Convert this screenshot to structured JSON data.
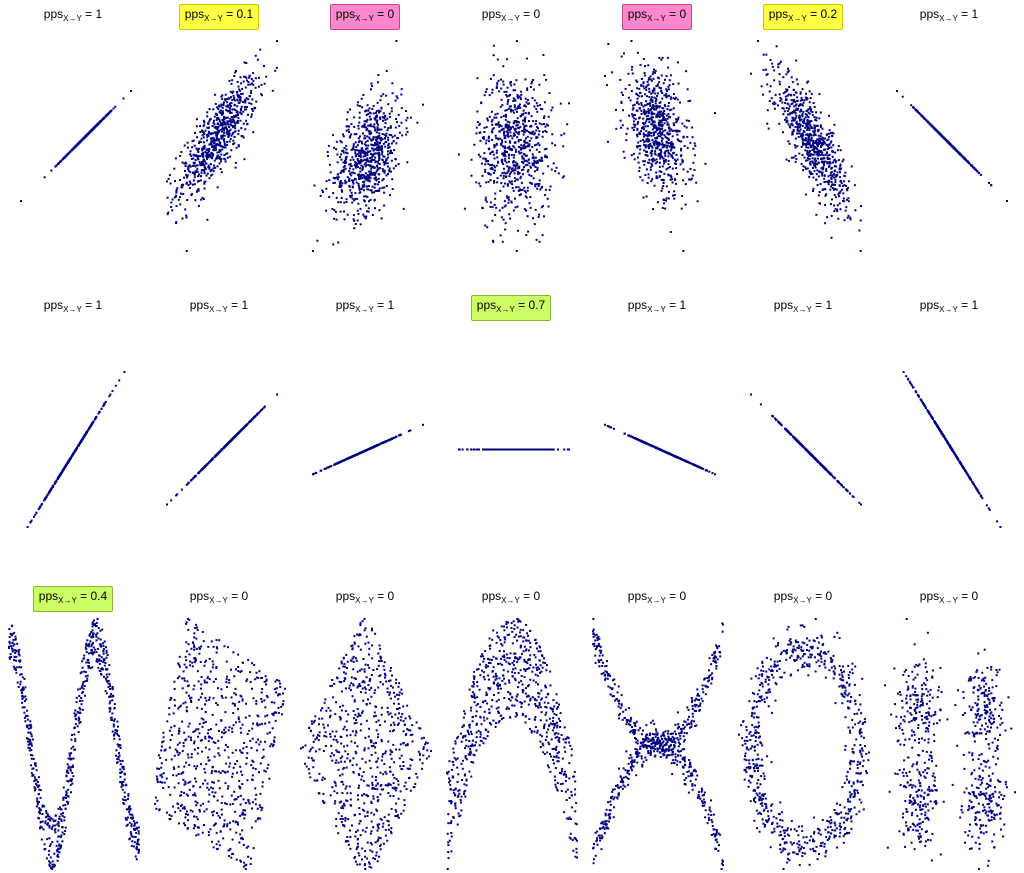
{
  "chart_data": [
    {
      "type": "scatter",
      "row": 0,
      "label": {
        "prefix": "pps",
        "sub": "X→Y",
        "value": "= 1"
      },
      "highlight": null,
      "pattern": "line",
      "slope": 1.0
    },
    {
      "type": "scatter",
      "row": 0,
      "label": {
        "prefix": "pps",
        "sub": "X→Y",
        "value": "= 0.1"
      },
      "highlight": "#ffff44",
      "pattern": "corr",
      "rho": 0.8
    },
    {
      "type": "scatter",
      "row": 0,
      "label": {
        "prefix": "pps",
        "sub": "X→Y",
        "value": "= 0"
      },
      "highlight": "#ff88cc",
      "pattern": "corr",
      "rho": 0.4
    },
    {
      "type": "scatter",
      "row": 0,
      "label": {
        "prefix": "pps",
        "sub": "X→Y",
        "value": "= 0"
      },
      "highlight": null,
      "pattern": "corr",
      "rho": 0.0
    },
    {
      "type": "scatter",
      "row": 0,
      "label": {
        "prefix": "pps",
        "sub": "X→Y",
        "value": "= 0"
      },
      "highlight": "#ff88cc",
      "pattern": "corr",
      "rho": -0.4
    },
    {
      "type": "scatter",
      "row": 0,
      "label": {
        "prefix": "pps",
        "sub": "X→Y",
        "value": "= 0.2"
      },
      "highlight": "#ffff44",
      "pattern": "corr",
      "rho": -0.8
    },
    {
      "type": "scatter",
      "row": 0,
      "label": {
        "prefix": "pps",
        "sub": "X→Y",
        "value": "= 1"
      },
      "highlight": null,
      "pattern": "line",
      "slope": -1.0
    },
    {
      "type": "scatter",
      "row": 1,
      "label": {
        "prefix": "pps",
        "sub": "X→Y",
        "value": "= 1"
      },
      "highlight": null,
      "pattern": "line",
      "slope": 1.6
    },
    {
      "type": "scatter",
      "row": 1,
      "label": {
        "prefix": "pps",
        "sub": "X→Y",
        "value": "= 1"
      },
      "highlight": null,
      "pattern": "line",
      "slope": 1.0
    },
    {
      "type": "scatter",
      "row": 1,
      "label": {
        "prefix": "pps",
        "sub": "X→Y",
        "value": "= 1"
      },
      "highlight": null,
      "pattern": "line",
      "slope": 0.45
    },
    {
      "type": "scatter",
      "row": 1,
      "label": {
        "prefix": "pps",
        "sub": "X→Y",
        "value": "= 0.7"
      },
      "highlight": "#ccff66",
      "pattern": "line",
      "slope": 0.0
    },
    {
      "type": "scatter",
      "row": 1,
      "label": {
        "prefix": "pps",
        "sub": "X→Y",
        "value": "= 1"
      },
      "highlight": null,
      "pattern": "line",
      "slope": -0.45
    },
    {
      "type": "scatter",
      "row": 1,
      "label": {
        "prefix": "pps",
        "sub": "X→Y",
        "value": "= 1"
      },
      "highlight": null,
      "pattern": "line",
      "slope": -1.0
    },
    {
      "type": "scatter",
      "row": 1,
      "label": {
        "prefix": "pps",
        "sub": "X→Y",
        "value": "= 1"
      },
      "highlight": null,
      "pattern": "line",
      "slope": -1.6
    },
    {
      "type": "scatter",
      "row": 2,
      "label": {
        "prefix": "pps",
        "sub": "X→Y",
        "value": "= 0.4"
      },
      "highlight": "#ccff66",
      "pattern": "wave"
    },
    {
      "type": "scatter",
      "row": 2,
      "label": {
        "prefix": "pps",
        "sub": "X→Y",
        "value": "= 0"
      },
      "highlight": null,
      "pattern": "rotated-square"
    },
    {
      "type": "scatter",
      "row": 2,
      "label": {
        "prefix": "pps",
        "sub": "X→Y",
        "value": "= 0"
      },
      "highlight": null,
      "pattern": "diamond"
    },
    {
      "type": "scatter",
      "row": 2,
      "label": {
        "prefix": "pps",
        "sub": "X→Y",
        "value": "= 0"
      },
      "highlight": null,
      "pattern": "parabola"
    },
    {
      "type": "scatter",
      "row": 2,
      "label": {
        "prefix": "pps",
        "sub": "X→Y",
        "value": "= 0"
      },
      "highlight": null,
      "pattern": "x-shape"
    },
    {
      "type": "scatter",
      "row": 2,
      "label": {
        "prefix": "pps",
        "sub": "X→Y",
        "value": "= 0"
      },
      "highlight": null,
      "pattern": "ring"
    },
    {
      "type": "scatter",
      "row": 2,
      "label": {
        "prefix": "pps",
        "sub": "X→Y",
        "value": "= 0"
      },
      "highlight": null,
      "pattern": "four-clusters"
    }
  ],
  "point_color": "#00007f",
  "highlight_border": {
    "#ffff44": "#c8c800",
    "#ff88cc": "#d04090",
    "#ccff66": "#88b830"
  }
}
